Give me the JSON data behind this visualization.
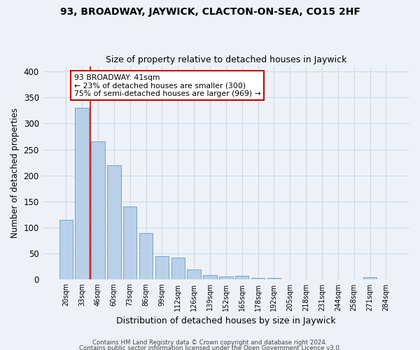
{
  "title1": "93, BROADWAY, JAYWICK, CLACTON-ON-SEA, CO15 2HF",
  "title2": "Size of property relative to detached houses in Jaywick",
  "xlabel": "Distribution of detached houses by size in Jaywick",
  "ylabel": "Number of detached properties",
  "categories": [
    "20sqm",
    "33sqm",
    "46sqm",
    "60sqm",
    "73sqm",
    "86sqm",
    "99sqm",
    "112sqm",
    "126sqm",
    "139sqm",
    "152sqm",
    "165sqm",
    "178sqm",
    "192sqm",
    "205sqm",
    "218sqm",
    "231sqm",
    "244sqm",
    "258sqm",
    "271sqm",
    "284sqm"
  ],
  "values": [
    115,
    330,
    265,
    220,
    140,
    90,
    45,
    42,
    20,
    9,
    6,
    7,
    3,
    3,
    0,
    0,
    0,
    0,
    0,
    4,
    0
  ],
  "bar_color": "#b8d0ea",
  "bar_edge_color": "#6699cc",
  "grid_color": "#ccd8e8",
  "background_color": "#eef2f8",
  "annotation_box_color": "#ffffff",
  "annotation_border_color": "#cc0000",
  "vline_color": "#cc0000",
  "vline_x": 1.5,
  "annotation_text": "93 BROADWAY: 41sqm\n← 23% of detached houses are smaller (300)\n75% of semi-detached houses are larger (969) →",
  "footnote1": "Contains HM Land Registry data © Crown copyright and database right 2024.",
  "footnote2": "Contains public sector information licensed under the Open Government Licence v3.0.",
  "ylim": [
    0,
    410
  ],
  "yticks": [
    0,
    50,
    100,
    150,
    200,
    250,
    300,
    350,
    400
  ]
}
